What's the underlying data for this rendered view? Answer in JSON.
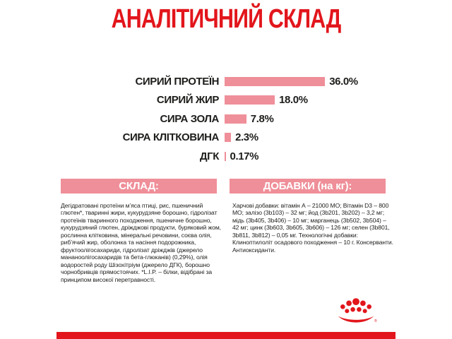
{
  "page": {
    "title": "АНАЛІТИЧНИЙ СКЛАД"
  },
  "chart_data": {
    "type": "bar",
    "orientation": "horizontal",
    "title": "АНАЛІТИЧНИЙ СКЛАД",
    "categories": [
      "СИРИЙ ПРОТЕЇН",
      "СИРИЙ ЖИР",
      "СИРА ЗОЛА",
      "СИРА КЛІТКОВИНА",
      "ДГК"
    ],
    "values": [
      36.0,
      18.0,
      7.8,
      2.3,
      0.17
    ],
    "value_labels": [
      "36.0%",
      "18.0%",
      "7.8%",
      "2.3%",
      "0.17%"
    ],
    "unit": "%",
    "xlim": [
      0,
      38
    ],
    "grid": false,
    "legend": false,
    "bar_color": "#ef8f99"
  },
  "sections": {
    "composition": {
      "header": "СКЛАД:",
      "body": "Дегідратовані протеїни м’яса птиці, рис, пшеничний глютен*, тваринні жири, кукурудзяне борошно, гідролізат протеїнів тваринного походження, пшеничне борошно, кукурудзяний глютен, дріжджові продукти, буряковий жом, рослинна клітковина, мінеральні речовини, соєва олія, риб’ячий жир, оболонка та насіння подорожника, фруктоолігосахариди, гідролізат дріжджів (джерело мананоолігосахаридів та бета-глюканів) (0,29%), олія водоростей роду Шізохітріум (джерело ДГК), борошно чорнобривців прямостоячих. *L.I.P. – білки, відібрані за принципом високої перетравності."
    },
    "additives": {
      "header": "ДОБАВКИ (на кг):",
      "body": "Харчові добавки: вітамін А – 21000 МО; Вітамін D3 – 800 МО; залізо (3b103) – 32 мг; йод (3b201, 3b202) – 3,2 мг; мідь (3b405, 3b406) – 10 мг; марганець (3b502, 3b504) – 42 мг; цинк (3b603, 3b605, 3b606) – 126 мг; селен (3b801, 3b811, 3b812) – 0,05 мг. Технологічні добавки: Клиноптилоліт осадового походження – 10 г. Консерванти. Антиоксиданти."
    }
  },
  "branding": {
    "logo": "royal-canin-crown",
    "registered_mark": "®"
  },
  "colors": {
    "accent_red": "#e2161c",
    "bar_pink": "#ef8f99",
    "text_dark": "#1d1d1b",
    "background": "#ffffff"
  }
}
